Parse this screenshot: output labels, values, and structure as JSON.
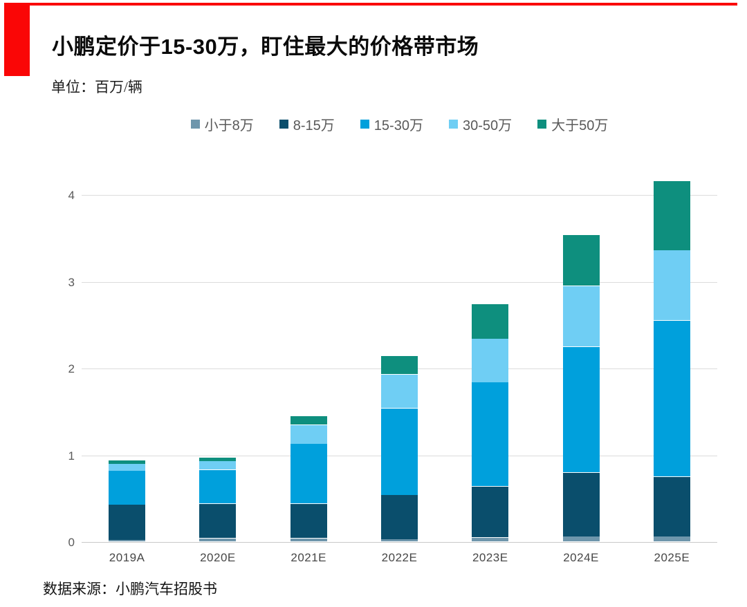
{
  "header": {
    "title": "小鹏定价于15-30万，盯住最大的价格带市场",
    "unit_label": "单位：百万/辆"
  },
  "footer": {
    "source": "数据来源：小鹏汽车招股书"
  },
  "colors": {
    "accent_red": "#fa0606",
    "grid": "#dcdcdc",
    "axis_text": "#595959",
    "legend_text": "#595959"
  },
  "chart_data": {
    "type": "bar",
    "stacked": true,
    "title": "小鹏定价于15-30万，盯住最大的价格带市场",
    "ylabel": "单位：百万/辆",
    "xlabel": "",
    "grid": true,
    "legend_position": "top",
    "ylim": [
      0,
      4
    ],
    "yticks": [
      0,
      1,
      2,
      3,
      4
    ],
    "categories": [
      "2019A",
      "2020E",
      "2021E",
      "2022E",
      "2023E",
      "2024E",
      "2025E"
    ],
    "series": [
      {
        "name": "小于8万",
        "color": "#6e96ac",
        "values": [
          0.02,
          0.04,
          0.04,
          0.03,
          0.05,
          0.06,
          0.06
        ]
      },
      {
        "name": "8-15万",
        "color": "#0a4e6c",
        "values": [
          0.41,
          0.4,
          0.4,
          0.51,
          0.59,
          0.74,
          0.69
        ]
      },
      {
        "name": "15-30万",
        "color": "#00a0dc",
        "values": [
          0.39,
          0.39,
          0.69,
          1.0,
          1.2,
          1.45,
          1.8
        ]
      },
      {
        "name": "30-50万",
        "color": "#6fcef4",
        "values": [
          0.08,
          0.1,
          0.22,
          0.39,
          0.5,
          0.7,
          0.81
        ]
      },
      {
        "name": "大于50万",
        "color": "#0e8f7e",
        "values": [
          0.04,
          0.04,
          0.1,
          0.21,
          0.4,
          0.59,
          0.8
        ]
      }
    ],
    "totals": [
      0.94,
      0.97,
      1.45,
      2.14,
      2.74,
      3.54,
      4.16
    ]
  }
}
